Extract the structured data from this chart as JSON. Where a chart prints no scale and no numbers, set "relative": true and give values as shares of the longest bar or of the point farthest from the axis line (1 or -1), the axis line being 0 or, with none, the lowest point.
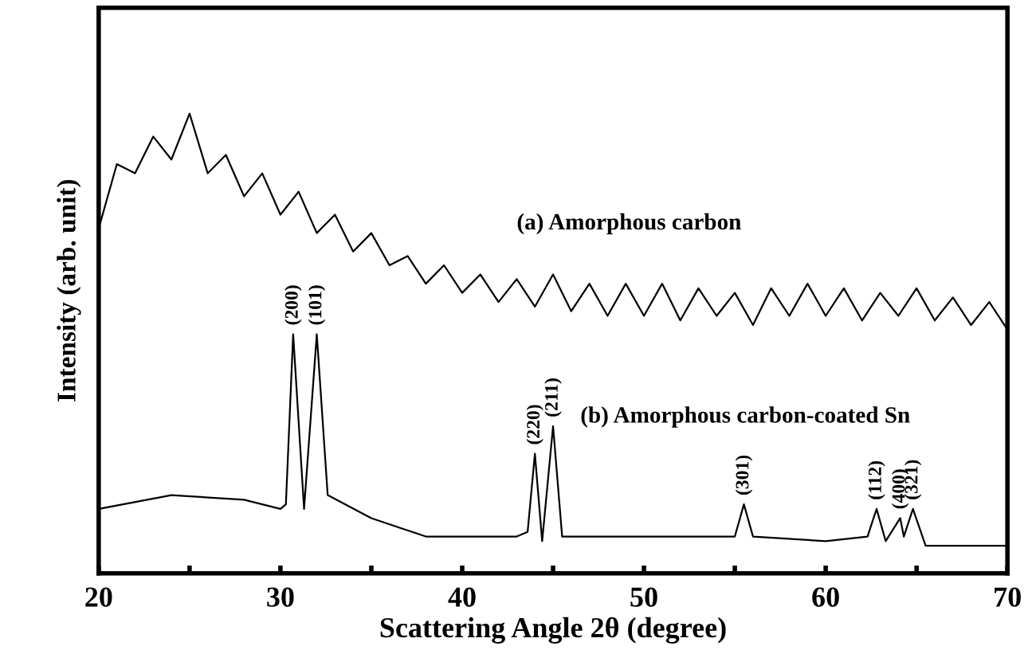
{
  "chart_data": {
    "type": "line",
    "relative": true,
    "xlabel": "Scattering Angle 2θ (degree)",
    "ylabel": "Intensity (arb. unit)",
    "xlim": [
      20,
      70
    ],
    "xticks": [
      20,
      {
        "value": 25,
        "label": null
      },
      30,
      {
        "value": 35,
        "label": null
      },
      40,
      {
        "value": 45,
        "label": null
      },
      50,
      {
        "value": 55,
        "label": null
      },
      60,
      {
        "value": 65,
        "label": null
      },
      70
    ],
    "grid": false,
    "legend": false,
    "marker": "none",
    "line_style": "solid",
    "series": [
      {
        "name": "(a) Amorphous carbon",
        "color": "#000000",
        "x": [
          20,
          21,
          22,
          23,
          24,
          25,
          26,
          27,
          28,
          29,
          30,
          31,
          32,
          33,
          34,
          35,
          36,
          37,
          38,
          39,
          40,
          41,
          42,
          43,
          44,
          45,
          46,
          47,
          48,
          49,
          50,
          51,
          52,
          53,
          54,
          55,
          56,
          57,
          58,
          59,
          60,
          61,
          62,
          63,
          64,
          65,
          66,
          67,
          68,
          69,
          70
        ],
        "values": [
          0.75,
          0.89,
          0.87,
          0.95,
          0.9,
          1,
          0.87,
          0.91,
          0.82,
          0.87,
          0.78,
          0.83,
          0.74,
          0.78,
          0.7,
          0.74,
          0.67,
          0.69,
          0.63,
          0.67,
          0.61,
          0.65,
          0.59,
          0.64,
          0.58,
          0.65,
          0.57,
          0.63,
          0.56,
          0.63,
          0.56,
          0.63,
          0.55,
          0.62,
          0.56,
          0.61,
          0.54,
          0.62,
          0.56,
          0.63,
          0.56,
          0.62,
          0.55,
          0.61,
          0.56,
          0.62,
          0.55,
          0.6,
          0.54,
          0.59,
          0.53
        ]
      },
      {
        "name": "(b) Amorphous carbon-coated Sn",
        "color": "#000000",
        "x": [
          20,
          24,
          28,
          30,
          30.3,
          30.7,
          31.3,
          32.0,
          32.6,
          35,
          38,
          40,
          43,
          43.6,
          44.0,
          44.4,
          45.0,
          45.5,
          50,
          55,
          55.5,
          56,
          60,
          62.3,
          62.8,
          63.3,
          64.1,
          64.3,
          64.8,
          65.5,
          70
        ],
        "values": [
          0.14,
          0.17,
          0.16,
          0.14,
          0.15,
          0.52,
          0.14,
          0.52,
          0.17,
          0.12,
          0.08,
          0.08,
          0.08,
          0.09,
          0.26,
          0.07,
          0.32,
          0.08,
          0.08,
          0.08,
          0.15,
          0.08,
          0.07,
          0.08,
          0.14,
          0.07,
          0.12,
          0.08,
          0.14,
          0.06,
          0.06
        ]
      }
    ],
    "annotations": [
      {
        "text": "(200)",
        "x": 30.7,
        "y": 0.52
      },
      {
        "text": "(101)",
        "x": 32.0,
        "y": 0.52
      },
      {
        "text": "(220)",
        "x": 44.0,
        "y": 0.26
      },
      {
        "text": "(211)",
        "x": 45.0,
        "y": 0.32
      },
      {
        "text": "(301)",
        "x": 55.5,
        "y": 0.15
      },
      {
        "text": "(112)",
        "x": 62.8,
        "y": 0.14
      },
      {
        "text": "(400)",
        "x": 64.1,
        "y": 0.12
      },
      {
        "text": "(321)",
        "x": 64.8,
        "y": 0.14
      }
    ]
  }
}
